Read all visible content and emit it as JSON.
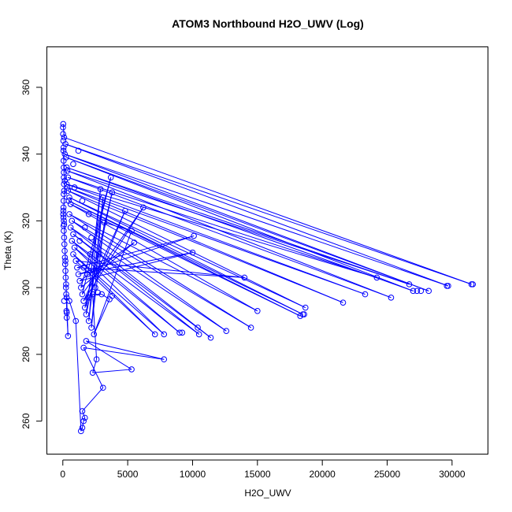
{
  "chart_data": {
    "type": "scatter",
    "title": "ATOM3 Northbound H2O_UWV (Log)",
    "xlabel": "H2O_UWV",
    "ylabel": "Theta (K)",
    "xlim": [
      -1200,
      32800
    ],
    "ylim": [
      250,
      372
    ],
    "xticks": [
      0,
      5000,
      10000,
      15000,
      20000,
      25000,
      30000
    ],
    "yticks": [
      260,
      280,
      300,
      320,
      340,
      360
    ],
    "grid": false,
    "color": "#0000ff",
    "point_marker": "open-circle",
    "connected": true,
    "series": [
      {
        "points": [
          {
            "x": 30,
            "y": 349
          },
          {
            "x": 100,
            "y": 345
          },
          {
            "x": 31500,
            "y": 301
          },
          {
            "x": 200,
            "y": 343
          },
          {
            "x": 29700,
            "y": 300.5
          },
          {
            "x": 150,
            "y": 340
          },
          {
            "x": 28200,
            "y": 299
          },
          {
            "x": 250,
            "y": 339
          },
          {
            "x": 27000,
            "y": 299
          },
          {
            "x": 300,
            "y": 336
          },
          {
            "x": 26700,
            "y": 301
          },
          {
            "x": 350,
            "y": 335
          },
          {
            "x": 25300,
            "y": 297
          },
          {
            "x": 400,
            "y": 333
          },
          {
            "x": 24200,
            "y": 303
          },
          {
            "x": 300,
            "y": 331
          },
          {
            "x": 23300,
            "y": 298
          },
          {
            "x": 350,
            "y": 330
          },
          {
            "x": 21600,
            "y": 295.5
          },
          {
            "x": 400,
            "y": 329
          },
          {
            "x": 18700,
            "y": 294
          },
          {
            "x": 500,
            "y": 327
          },
          {
            "x": 18500,
            "y": 292
          },
          {
            "x": 450,
            "y": 326
          },
          {
            "x": 18300,
            "y": 291.5
          },
          {
            "x": 600,
            "y": 325
          },
          {
            "x": 15000,
            "y": 293
          },
          {
            "x": 500,
            "y": 322
          },
          {
            "x": 14500,
            "y": 288
          },
          {
            "x": 700,
            "y": 320
          },
          {
            "x": 12600,
            "y": 287
          },
          {
            "x": 600,
            "y": 318
          },
          {
            "x": 11400,
            "y": 285
          },
          {
            "x": 800,
            "y": 316
          },
          {
            "x": 10500,
            "y": 286
          },
          {
            "x": 700,
            "y": 314
          },
          {
            "x": 9000,
            "y": 286.5
          },
          {
            "x": 900,
            "y": 312
          },
          {
            "x": 7800,
            "y": 286
          },
          {
            "x": 800,
            "y": 310
          },
          {
            "x": 7100,
            "y": 286
          },
          {
            "x": 1000,
            "y": 308
          },
          {
            "x": 14000,
            "y": 303
          },
          {
            "x": 1100,
            "y": 306
          },
          {
            "x": 10100,
            "y": 315.5
          },
          {
            "x": 1200,
            "y": 304
          },
          {
            "x": 10000,
            "y": 310.5
          },
          {
            "x": 1300,
            "y": 302
          },
          {
            "x": 5500,
            "y": 313.5
          },
          {
            "x": 1400,
            "y": 300
          },
          {
            "x": 3700,
            "y": 333
          },
          {
            "x": 1500,
            "y": 298
          },
          {
            "x": 6200,
            "y": 324
          },
          {
            "x": 1600,
            "y": 296
          },
          {
            "x": 4800,
            "y": 323
          },
          {
            "x": 1700,
            "y": 294
          },
          {
            "x": 3800,
            "y": 328.5
          },
          {
            "x": 1800,
            "y": 292
          },
          {
            "x": 2900,
            "y": 329.5
          },
          {
            "x": 2000,
            "y": 290
          },
          {
            "x": 3100,
            "y": 327
          },
          {
            "x": 2200,
            "y": 288
          },
          {
            "x": 3200,
            "y": 319.5
          },
          {
            "x": 5300,
            "y": 317
          },
          {
            "x": 2400,
            "y": 286
          },
          {
            "x": 3600,
            "y": 296.5
          },
          {
            "x": 3000,
            "y": 298
          },
          {
            "x": 2300,
            "y": 298
          },
          {
            "x": 2600,
            "y": 278.5
          },
          {
            "x": 2300,
            "y": 274.5
          },
          {
            "x": 5300,
            "y": 275.5
          },
          {
            "x": 1800,
            "y": 284
          },
          {
            "x": 7800,
            "y": 278.5
          },
          {
            "x": 1600,
            "y": 282
          },
          {
            "x": 3100,
            "y": 270
          },
          {
            "x": 1500,
            "y": 263
          },
          {
            "x": 1700,
            "y": 261
          },
          {
            "x": 1600,
            "y": 260
          },
          {
            "x": 1500,
            "y": 258
          },
          {
            "x": 1400,
            "y": 257
          },
          {
            "x": 1000,
            "y": 290
          },
          {
            "x": 500,
            "y": 296
          },
          {
            "x": 300,
            "y": 297
          },
          {
            "x": 400,
            "y": 285.5
          },
          {
            "x": 300,
            "y": 292.5
          },
          {
            "x": 250,
            "y": 301
          },
          {
            "x": 200,
            "y": 308
          },
          {
            "x": 100,
            "y": 319
          },
          {
            "x": 50,
            "y": 321
          },
          {
            "x": 150,
            "y": 332
          },
          {
            "x": 80,
            "y": 334.5
          },
          {
            "x": 60,
            "y": 342
          }
        ]
      }
    ],
    "extra_points": [
      {
        "x": 10,
        "y": 348
      },
      {
        "x": 20,
        "y": 346
      },
      {
        "x": 40,
        "y": 344
      },
      {
        "x": 50,
        "y": 341
      },
      {
        "x": 60,
        "y": 338
      },
      {
        "x": 70,
        "y": 336
      },
      {
        "x": 80,
        "y": 333
      },
      {
        "x": 90,
        "y": 331
      },
      {
        "x": 100,
        "y": 329
      },
      {
        "x": 70,
        "y": 328
      },
      {
        "x": 60,
        "y": 326
      },
      {
        "x": 50,
        "y": 324
      },
      {
        "x": 40,
        "y": 323
      },
      {
        "x": 30,
        "y": 322
      },
      {
        "x": 80,
        "y": 320
      },
      {
        "x": 60,
        "y": 318.5
      },
      {
        "x": 70,
        "y": 317
      },
      {
        "x": 100,
        "y": 315
      },
      {
        "x": 120,
        "y": 313
      },
      {
        "x": 140,
        "y": 311
      },
      {
        "x": 160,
        "y": 309
      },
      {
        "x": 180,
        "y": 307
      },
      {
        "x": 200,
        "y": 305
      },
      {
        "x": 220,
        "y": 303
      },
      {
        "x": 240,
        "y": 300
      },
      {
        "x": 260,
        "y": 298
      },
      {
        "x": 100,
        "y": 296
      },
      {
        "x": 280,
        "y": 293
      },
      {
        "x": 300,
        "y": 291
      },
      {
        "x": 1500,
        "y": 326
      },
      {
        "x": 2000,
        "y": 322
      },
      {
        "x": 2200,
        "y": 315
      },
      {
        "x": 2100,
        "y": 310
      },
      {
        "x": 1900,
        "y": 304
      },
      {
        "x": 2800,
        "y": 310
      },
      {
        "x": 800,
        "y": 337
      },
      {
        "x": 1200,
        "y": 341
      },
      {
        "x": 900,
        "y": 330
      },
      {
        "x": 1700,
        "y": 318
      },
      {
        "x": 1300,
        "y": 314
      },
      {
        "x": 1600,
        "y": 306
      },
      {
        "x": 2500,
        "y": 300
      },
      {
        "x": 2000,
        "y": 297
      },
      {
        "x": 3800,
        "y": 297.5
      },
      {
        "x": 2700,
        "y": 298.5
      },
      {
        "x": 9200,
        "y": 286.5
      },
      {
        "x": 10400,
        "y": 288
      },
      {
        "x": 27600,
        "y": 299
      },
      {
        "x": 27300,
        "y": 299
      },
      {
        "x": 29600,
        "y": 300.5
      },
      {
        "x": 31600,
        "y": 301
      },
      {
        "x": 18600,
        "y": 292
      }
    ]
  }
}
